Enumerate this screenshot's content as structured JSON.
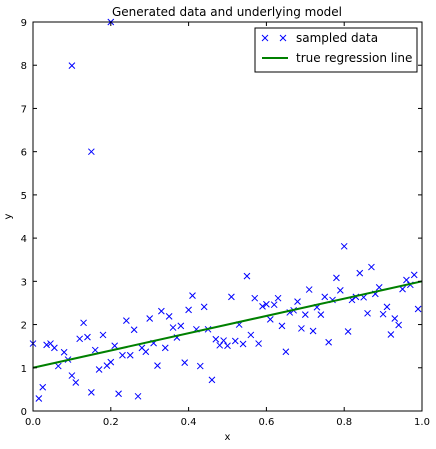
{
  "chart_data": {
    "type": "scatter",
    "title": "Generated data and underlying model",
    "xlabel": "x",
    "ylabel": "y",
    "xlim": [
      0.0,
      1.0
    ],
    "ylim": [
      0,
      9
    ],
    "xticks": [
      "0.0",
      "0.2",
      "0.4",
      "0.6",
      "0.8",
      "1.0"
    ],
    "yticks": [
      "0",
      "1",
      "2",
      "3",
      "4",
      "5",
      "6",
      "7",
      "8",
      "9"
    ],
    "grid": false,
    "legend_position": "top-right",
    "series": [
      {
        "name": "sampled data",
        "kind": "scatter",
        "marker": "x",
        "color": "#0000ff",
        "points": [
          [
            0.0,
            1.56
          ],
          [
            0.015,
            0.29
          ],
          [
            0.025,
            0.55
          ],
          [
            0.035,
            1.53
          ],
          [
            0.045,
            1.56
          ],
          [
            0.055,
            1.46
          ],
          [
            0.065,
            1.04
          ],
          [
            0.08,
            1.36
          ],
          [
            0.09,
            1.19
          ],
          [
            0.1,
            7.99
          ],
          [
            0.1,
            0.82
          ],
          [
            0.11,
            0.66
          ],
          [
            0.12,
            1.67
          ],
          [
            0.13,
            2.04
          ],
          [
            0.14,
            1.71
          ],
          [
            0.15,
            6.0
          ],
          [
            0.15,
            0.43
          ],
          [
            0.16,
            1.41
          ],
          [
            0.17,
            0.96
          ],
          [
            0.18,
            1.76
          ],
          [
            0.19,
            1.05
          ],
          [
            0.2,
            9.0
          ],
          [
            0.2,
            1.13
          ],
          [
            0.21,
            1.51
          ],
          [
            0.22,
            0.4
          ],
          [
            0.23,
            1.29
          ],
          [
            0.24,
            2.09
          ],
          [
            0.25,
            1.29
          ],
          [
            0.26,
            1.88
          ],
          [
            0.27,
            0.34
          ],
          [
            0.28,
            1.46
          ],
          [
            0.29,
            1.37
          ],
          [
            0.3,
            2.14
          ],
          [
            0.31,
            1.57
          ],
          [
            0.32,
            1.05
          ],
          [
            0.33,
            2.31
          ],
          [
            0.34,
            1.46
          ],
          [
            0.35,
            2.19
          ],
          [
            0.36,
            1.93
          ],
          [
            0.37,
            1.7
          ],
          [
            0.38,
            1.97
          ],
          [
            0.39,
            1.12
          ],
          [
            0.4,
            2.34
          ],
          [
            0.41,
            2.67
          ],
          [
            0.42,
            1.89
          ],
          [
            0.43,
            1.04
          ],
          [
            0.44,
            2.41
          ],
          [
            0.45,
            1.89
          ],
          [
            0.46,
            0.72
          ],
          [
            0.47,
            1.66
          ],
          [
            0.48,
            1.52
          ],
          [
            0.49,
            1.63
          ],
          [
            0.5,
            1.51
          ],
          [
            0.51,
            2.64
          ],
          [
            0.52,
            1.62
          ],
          [
            0.53,
            2.0
          ],
          [
            0.54,
            1.55
          ],
          [
            0.55,
            3.12
          ],
          [
            0.56,
            1.76
          ],
          [
            0.57,
            2.61
          ],
          [
            0.58,
            1.56
          ],
          [
            0.59,
            2.42
          ],
          [
            0.6,
            2.47
          ],
          [
            0.61,
            2.12
          ],
          [
            0.62,
            2.46
          ],
          [
            0.63,
            2.61
          ],
          [
            0.64,
            1.97
          ],
          [
            0.65,
            1.37
          ],
          [
            0.66,
            2.28
          ],
          [
            0.67,
            2.33
          ],
          [
            0.68,
            2.53
          ],
          [
            0.69,
            1.91
          ],
          [
            0.7,
            2.23
          ],
          [
            0.71,
            2.81
          ],
          [
            0.72,
            1.85
          ],
          [
            0.73,
            2.4
          ],
          [
            0.74,
            2.23
          ],
          [
            0.75,
            2.64
          ],
          [
            0.76,
            1.59
          ],
          [
            0.77,
            2.57
          ],
          [
            0.78,
            3.08
          ],
          [
            0.79,
            2.79
          ],
          [
            0.8,
            3.81
          ],
          [
            0.81,
            1.84
          ],
          [
            0.82,
            2.57
          ],
          [
            0.83,
            2.64
          ],
          [
            0.84,
            3.19
          ],
          [
            0.85,
            2.63
          ],
          [
            0.86,
            2.26
          ],
          [
            0.87,
            3.33
          ],
          [
            0.88,
            2.71
          ],
          [
            0.89,
            2.86
          ],
          [
            0.9,
            2.24
          ],
          [
            0.91,
            2.41
          ],
          [
            0.92,
            1.77
          ],
          [
            0.93,
            2.14
          ],
          [
            0.94,
            1.99
          ],
          [
            0.95,
            2.82
          ],
          [
            0.96,
            3.03
          ],
          [
            0.97,
            2.92
          ],
          [
            0.98,
            3.15
          ],
          [
            0.99,
            2.36
          ]
        ]
      },
      {
        "name": "true regression line",
        "kind": "line",
        "color": "#008000",
        "x": [
          0.0,
          1.0
        ],
        "y": [
          1.0,
          3.0
        ]
      }
    ]
  }
}
